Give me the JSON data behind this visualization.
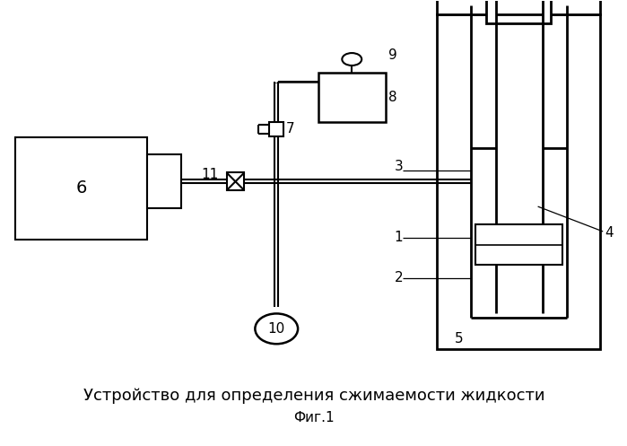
{
  "title": "Устройство для определения сжимаемости жидкости",
  "fig_label": "Фиг.1",
  "background_color": "#ffffff",
  "line_color": "#000000",
  "title_fontsize": 13,
  "figlabel_fontsize": 11,
  "label_fontsize": 11
}
